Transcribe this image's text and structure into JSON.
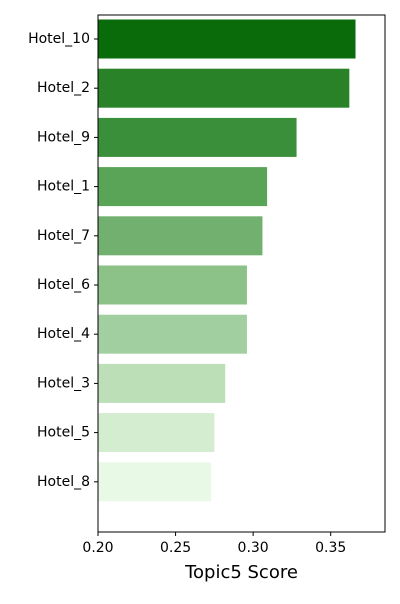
{
  "chart_data": {
    "type": "bar",
    "orientation": "horizontal",
    "categories": [
      "Hotel_10",
      "Hotel_2",
      "Hotel_9",
      "Hotel_1",
      "Hotel_7",
      "Hotel_6",
      "Hotel_4",
      "Hotel_3",
      "Hotel_5",
      "Hotel_8"
    ],
    "values": [
      0.366,
      0.362,
      0.328,
      0.309,
      0.306,
      0.296,
      0.296,
      0.282,
      0.275,
      0.273
    ],
    "colors": [
      "#0a6b0a",
      "#2a8228",
      "#3a8f3a",
      "#5aa458",
      "#72b070",
      "#8cc188",
      "#a2cfa0",
      "#bcdfb8",
      "#d4edd0",
      "#e8f9e6"
    ],
    "xlabel": "Topic5 Score",
    "ylabel": "",
    "title": "",
    "xlim": [
      0.2,
      0.385
    ],
    "xticks": [
      0.2,
      0.25,
      0.3,
      0.35
    ],
    "xtick_labels": [
      "0.20",
      "0.25",
      "0.30",
      "0.35"
    ],
    "grid": false,
    "legend": "none"
  }
}
